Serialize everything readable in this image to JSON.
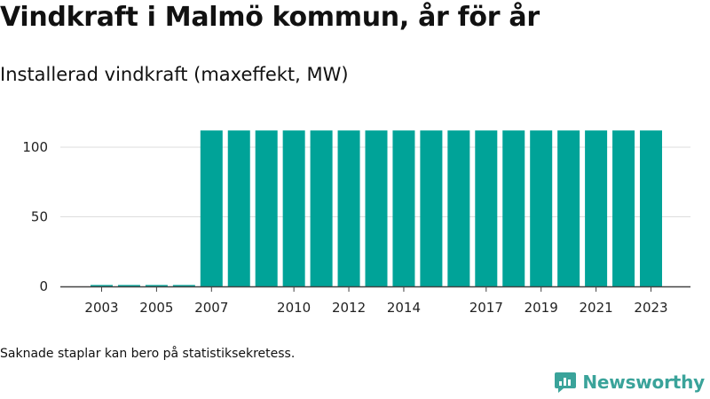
{
  "title": "Vindkraft i Malmö kommun, år för år",
  "subtitle": "Installerad vindkraft (maxeffekt, MW)",
  "footnote": "Saknade staplar kan bero på statistiksekretess.",
  "brand": {
    "name": "Newsworthy",
    "icon": "newsworthy-logo-icon",
    "color": "#3aa39a"
  },
  "chart_data": {
    "type": "bar",
    "categories": [
      "2003",
      "2004",
      "2005",
      "2006",
      "2007",
      "2008",
      "2009",
      "2010",
      "2011",
      "2012",
      "2013",
      "2014",
      "2015",
      "2016",
      "2017",
      "2018",
      "2019",
      "2020",
      "2021",
      "2022",
      "2023"
    ],
    "values": [
      1,
      1,
      1,
      1,
      112,
      112,
      112,
      112,
      112,
      112,
      112,
      112,
      112,
      112,
      112,
      112,
      112,
      112,
      112,
      112,
      112
    ],
    "x_tick_labels": [
      "2003",
      "2005",
      "2007",
      "2010",
      "2012",
      "2014",
      "2017",
      "2019",
      "2021",
      "2023"
    ],
    "y_ticks": [
      0,
      50,
      100
    ],
    "ylim": [
      0,
      120
    ],
    "bar_color": "#00a398",
    "grid": true,
    "xlabel": "",
    "ylabel": ""
  }
}
